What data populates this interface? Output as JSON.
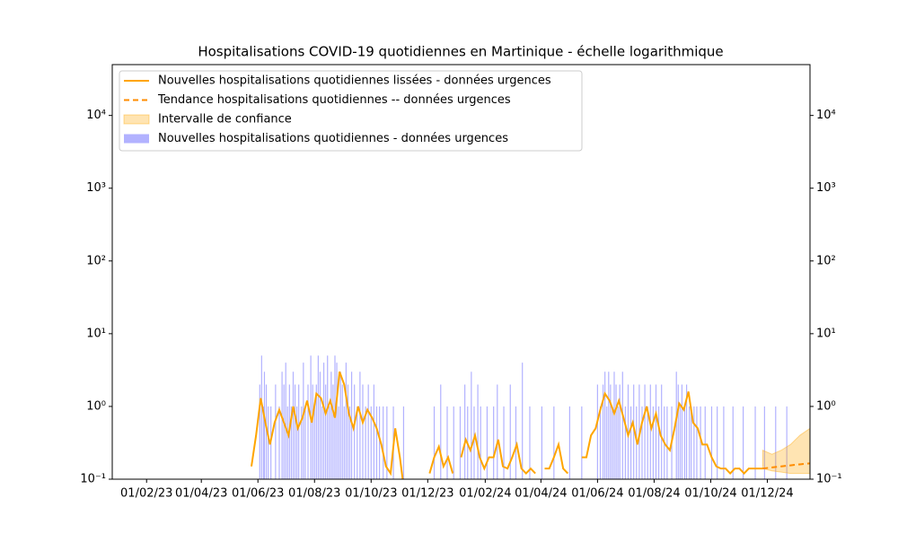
{
  "chart_data": {
    "type": "combo",
    "title": "Hospitalisations COVID-19 quotidiennes en Martinique - échelle logarithmique",
    "xlim": [
      "26/12/22",
      "16/01/25"
    ],
    "xticks": [
      "01/02/23",
      "01/04/23",
      "01/06/23",
      "01/08/23",
      "01/10/23",
      "01/12/23",
      "01/02/24",
      "01/04/24",
      "01/06/24",
      "01/08/24",
      "01/10/24",
      "01/12/24"
    ],
    "ylim": [
      0.1,
      50000
    ],
    "log_scale": true,
    "yticks": [
      {
        "value": 0.1,
        "label": "10⁻¹"
      },
      {
        "value": 1,
        "label": "10⁰"
      },
      {
        "value": 10,
        "label": "10¹"
      },
      {
        "value": 100,
        "label": "10²"
      },
      {
        "value": 1000,
        "label": "10³"
      },
      {
        "value": 10000,
        "label": "10⁴"
      }
    ],
    "legend": "upper left",
    "series": [
      {
        "name": "Nouvelles hospitalisations quotidiennes lissées - données urgences",
        "type": "line",
        "style": "solid",
        "color": "#ffa500",
        "x": [
          "25/05/23",
          "30/05/23",
          "04/06/23",
          "09/06/23",
          "14/06/23",
          "19/06/23",
          "24/06/23",
          "29/06/23",
          "04/07/23",
          "09/07/23",
          "14/07/23",
          "19/07/23",
          "24/07/23",
          "29/07/23",
          "03/08/23",
          "08/08/23",
          "13/08/23",
          "18/08/23",
          "23/08/23",
          "28/08/23",
          "02/09/23",
          "07/09/23",
          "12/09/23",
          "17/09/23",
          "22/09/23",
          "27/09/23",
          "02/10/23",
          "07/10/23",
          "12/10/23",
          "17/10/23",
          "22/10/23",
          "27/10/23",
          "01/11/23",
          "04/11/23",
          "06/11/23",
          "03/12/23",
          "08/12/23",
          "13/12/23",
          "18/12/23",
          "23/12/23",
          "28/12/23",
          "02/01/24",
          "06/01/24",
          "11/01/24",
          "16/01/24",
          "21/01/24",
          "26/01/24",
          "31/01/24",
          "05/02/24",
          "10/02/24",
          "15/02/24",
          "20/02/24",
          "25/02/24",
          "01/03/24",
          "06/03/24",
          "11/03/24",
          "16/03/24",
          "21/03/24",
          "26/03/24",
          "31/03/24",
          "05/04/24",
          "10/04/24",
          "15/04/24",
          "20/04/24",
          "25/04/24",
          "30/04/24",
          "05/05/24",
          "15/05/24",
          "20/05/24",
          "25/05/24",
          "30/05/24",
          "04/06/24",
          "09/06/24",
          "14/06/24",
          "19/06/24",
          "24/06/24",
          "29/06/24",
          "04/07/24",
          "09/07/24",
          "14/07/24",
          "19/07/24",
          "24/07/24",
          "29/07/24",
          "03/08/24",
          "08/08/24",
          "13/08/24",
          "18/08/24",
          "23/08/24",
          "28/08/24",
          "02/09/24",
          "07/09/24",
          "12/09/24",
          "17/09/24",
          "22/09/24",
          "27/09/24",
          "02/10/24",
          "07/10/24",
          "12/10/24",
          "17/10/24",
          "22/10/24",
          "27/10/24",
          "01/11/24",
          "06/11/24",
          "11/11/24",
          "16/11/24",
          "21/11/24",
          "26/11/24"
        ],
        "values": [
          0.15,
          0.4,
          1.3,
          0.6,
          0.3,
          0.6,
          0.9,
          0.6,
          0.4,
          1.0,
          0.5,
          0.7,
          1.2,
          0.6,
          1.5,
          1.3,
          0.8,
          1.2,
          0.7,
          3.0,
          2.0,
          0.8,
          0.5,
          1.0,
          0.6,
          0.9,
          0.7,
          0.5,
          0.3,
          0.15,
          0.12,
          0.5,
          0.2,
          0.1,
          null,
          0.12,
          0.2,
          0.28,
          0.15,
          0.2,
          0.12,
          null,
          0.2,
          0.35,
          0.25,
          0.4,
          0.2,
          0.14,
          0.2,
          0.2,
          0.35,
          0.15,
          0.14,
          0.2,
          0.3,
          0.14,
          0.12,
          0.14,
          0.12,
          null,
          0.14,
          0.14,
          0.2,
          0.3,
          0.14,
          0.12,
          null,
          0.2,
          0.2,
          0.4,
          0.5,
          0.9,
          1.5,
          1.2,
          0.8,
          1.2,
          0.7,
          0.4,
          0.6,
          0.3,
          0.6,
          1.0,
          0.5,
          0.8,
          0.4,
          0.3,
          0.25,
          0.5,
          1.1,
          0.9,
          1.6,
          0.6,
          0.5,
          0.3,
          0.3,
          0.2,
          0.15,
          0.14,
          0.14,
          0.12,
          0.14,
          0.14,
          0.12,
          0.14,
          0.14,
          0.14,
          0.14
        ]
      },
      {
        "name": "Tendance hospitalisations quotidiennes -- données urgences",
        "type": "line",
        "style": "dashed",
        "color": "#ff8c00",
        "x": [
          "26/11/24",
          "06/12/24",
          "16/12/24",
          "26/12/24",
          "05/01/25",
          "16/01/25"
        ],
        "values": [
          0.14,
          0.145,
          0.15,
          0.155,
          0.16,
          0.165
        ]
      },
      {
        "name": "Intervalle de confiance",
        "type": "area",
        "color": "#ffa500",
        "x": [
          "26/11/24",
          "06/12/24",
          "16/12/24",
          "26/12/24",
          "05/01/25",
          "16/01/25"
        ],
        "lower": [
          0.14,
          0.13,
          0.125,
          0.12,
          0.12,
          0.12
        ],
        "upper": [
          0.25,
          0.22,
          0.25,
          0.3,
          0.4,
          0.5
        ]
      },
      {
        "name": "Nouvelles hospitalisations quotidiennes - données urgences",
        "type": "bar",
        "color": "#b2b2ff",
        "x": [
          "03/06/23",
          "05/06/23",
          "07/06/23",
          "08/06/23",
          "10/06/23",
          "12/06/23",
          "15/06/23",
          "20/06/23",
          "24/06/23",
          "27/06/23",
          "29/06/23",
          "01/07/23",
          "03/07/23",
          "05/07/23",
          "07/07/23",
          "09/07/23",
          "11/07/23",
          "13/07/23",
          "15/07/23",
          "18/07/23",
          "20/07/23",
          "22/07/23",
          "25/07/23",
          "28/07/23",
          "30/07/23",
          "01/08/23",
          "03/08/23",
          "05/08/23",
          "07/08/23",
          "09/08/23",
          "11/08/23",
          "13/08/23",
          "15/08/23",
          "17/08/23",
          "19/08/23",
          "21/08/23",
          "23/08/23",
          "25/08/23",
          "27/08/23",
          "29/08/23",
          "31/08/23",
          "02/09/23",
          "04/09/23",
          "06/09/23",
          "08/09/23",
          "10/09/23",
          "13/09/23",
          "16/09/23",
          "19/09/23",
          "22/09/23",
          "25/09/23",
          "28/09/23",
          "01/10/23",
          "04/10/23",
          "07/10/23",
          "10/10/23",
          "14/10/23",
          "18/10/23",
          "25/10/23",
          "05/11/23",
          "08/12/23",
          "15/12/23",
          "22/12/23",
          "29/12/23",
          "05/01/24",
          "10/01/24",
          "13/01/24",
          "17/01/24",
          "20/01/24",
          "24/01/24",
          "27/01/24",
          "03/02/24",
          "10/02/24",
          "14/02/24",
          "21/02/24",
          "28/02/24",
          "05/03/24",
          "12/03/24",
          "20/03/24",
          "02/04/24",
          "15/04/24",
          "02/05/24",
          "15/05/24",
          "01/06/24",
          "04/06/24",
          "07/06/24",
          "09/06/24",
          "11/06/24",
          "13/06/24",
          "15/06/24",
          "17/06/24",
          "19/06/24",
          "21/06/24",
          "23/06/24",
          "25/06/24",
          "28/06/24",
          "01/07/24",
          "04/07/24",
          "07/07/24",
          "10/07/24",
          "13/07/24",
          "16/07/24",
          "19/07/24",
          "22/07/24",
          "25/07/24",
          "28/07/24",
          "31/07/24",
          "03/08/24",
          "06/08/24",
          "09/08/24",
          "12/08/24",
          "15/08/24",
          "20/08/24",
          "25/08/24",
          "27/08/24",
          "29/08/24",
          "31/08/24",
          "03/09/24",
          "05/09/24",
          "08/09/24",
          "10/09/24",
          "13/09/24",
          "16/09/24",
          "20/09/24",
          "25/09/24",
          "02/10/24",
          "08/10/24",
          "15/10/24",
          "25/10/24",
          "05/11/24",
          "18/11/24",
          "28/11/24",
          "10/12/24",
          "22/12/24"
        ],
        "values": [
          2,
          5,
          1,
          3,
          2,
          1,
          1,
          2,
          1,
          3,
          2,
          4,
          1,
          2,
          1,
          3,
          2,
          1,
          2,
          1,
          4,
          1,
          2,
          5,
          2,
          1,
          2,
          5,
          3,
          1,
          4,
          2,
          5,
          1,
          3,
          2,
          5,
          4,
          1,
          3,
          2,
          1,
          4,
          2,
          1,
          3,
          2,
          1,
          3,
          2,
          1,
          2,
          1,
          2,
          1,
          1,
          1,
          1,
          1,
          1,
          1,
          2,
          1,
          1,
          1,
          2,
          1,
          3,
          1,
          2,
          1,
          1,
          1,
          2,
          1,
          2,
          1,
          4,
          1,
          1,
          1,
          1,
          1,
          2,
          1,
          2,
          3,
          1,
          3,
          2,
          1,
          3,
          2,
          1,
          2,
          3,
          1,
          2,
          1,
          2,
          1,
          2,
          1,
          2,
          1,
          2,
          1,
          2,
          1,
          2,
          1,
          1,
          1,
          3,
          2,
          1,
          2,
          1,
          2,
          1,
          1,
          1,
          1,
          1,
          1,
          1,
          1,
          1,
          1,
          1,
          1,
          1,
          1,
          1
        ]
      }
    ]
  }
}
